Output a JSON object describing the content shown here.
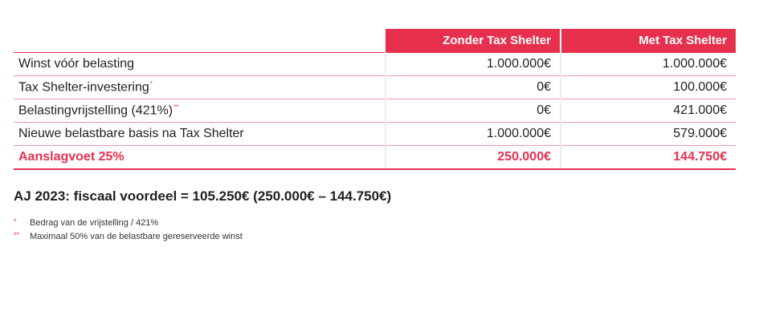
{
  "table": {
    "headers": [
      "Zonder Tax Shelter",
      "Met Tax Shelter"
    ],
    "rows": [
      {
        "label": "Winst vóór belasting",
        "mark": "",
        "zonder": "1.000.000€",
        "met": "1.000.000€"
      },
      {
        "label": "Tax Shelter-investering",
        "mark": "*",
        "zonder": "0€",
        "met": "100.000€"
      },
      {
        "label": "Belastingvrijstelling (421%)",
        "mark": "**",
        "zonder": "0€",
        "met": "421.000€"
      },
      {
        "label": "Nieuwe belastbare basis na Tax Shelter",
        "mark": "",
        "zonder": "1.000.000€",
        "met": "579.000€"
      },
      {
        "label": "Aanslagvoet 25%",
        "mark": "",
        "zonder": "250.000€",
        "met": "144.750€"
      }
    ]
  },
  "summary": "AJ 2023: fiscaal voordeel = 105.250€ (250.000€ – 144.750€)",
  "footnotes": [
    {
      "mark": "*",
      "text": "Bedrag van de vrijstelling / 421%"
    },
    {
      "mark": "**",
      "text": "Maximaal 50% van de belastbare gereserveerde winst"
    }
  ],
  "colors": {
    "accent": "#e7304e",
    "text": "#1f1f1f"
  }
}
